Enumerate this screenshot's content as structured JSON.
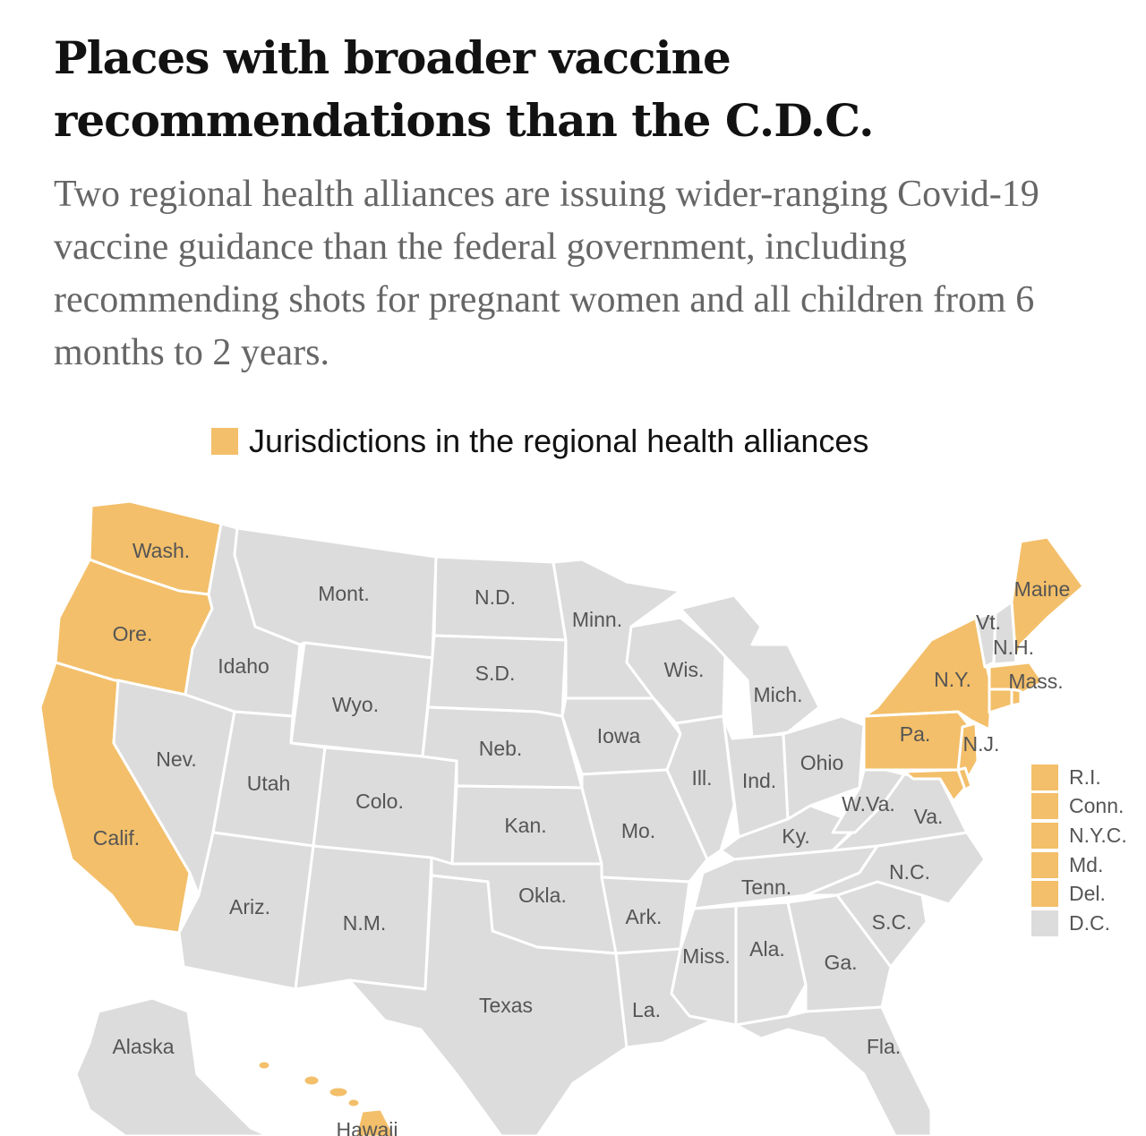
{
  "headline_line1": "Places with broader vaccine",
  "headline_line2": "recommendations than the C.D.C.",
  "dek": "Two regional health alliances are issuing wider-ranging Covid-19 vaccine guidance than the federal government, including recommending shots for pregnant women and all children from 6 months to 2 years.",
  "legend": {
    "label": "Jurisdictions in the regional health alliances",
    "color": "#f3bf6a"
  },
  "colors": {
    "alliance": "#f3bf6a",
    "other": "#dcdcdc",
    "border": "#ffffff",
    "label": "#555555"
  },
  "states": [
    {
      "id": "wa",
      "label": "Wash.",
      "alliance": true
    },
    {
      "id": "or",
      "label": "Ore.",
      "alliance": true
    },
    {
      "id": "ca",
      "label": "Calif.",
      "alliance": true
    },
    {
      "id": "id",
      "label": "Idaho",
      "alliance": false
    },
    {
      "id": "nv",
      "label": "Nev.",
      "alliance": false
    },
    {
      "id": "mt",
      "label": "Mont.",
      "alliance": false
    },
    {
      "id": "wy",
      "label": "Wyo.",
      "alliance": false
    },
    {
      "id": "ut",
      "label": "Utah",
      "alliance": false
    },
    {
      "id": "az",
      "label": "Ariz.",
      "alliance": false
    },
    {
      "id": "co",
      "label": "Colo.",
      "alliance": false
    },
    {
      "id": "nm",
      "label": "N.M.",
      "alliance": false
    },
    {
      "id": "nd",
      "label": "N.D.",
      "alliance": false
    },
    {
      "id": "sd",
      "label": "S.D.",
      "alliance": false
    },
    {
      "id": "ne",
      "label": "Neb.",
      "alliance": false
    },
    {
      "id": "ks",
      "label": "Kan.",
      "alliance": false
    },
    {
      "id": "ok",
      "label": "Okla.",
      "alliance": false
    },
    {
      "id": "tx",
      "label": "Texas",
      "alliance": false
    },
    {
      "id": "mn",
      "label": "Minn.",
      "alliance": false
    },
    {
      "id": "ia",
      "label": "Iowa",
      "alliance": false
    },
    {
      "id": "mo",
      "label": "Mo.",
      "alliance": false
    },
    {
      "id": "ar",
      "label": "Ark.",
      "alliance": false
    },
    {
      "id": "la",
      "label": "La.",
      "alliance": false
    },
    {
      "id": "wi",
      "label": "Wis.",
      "alliance": false
    },
    {
      "id": "il",
      "label": "Ill.",
      "alliance": false
    },
    {
      "id": "mi",
      "label": "Mich.",
      "alliance": false
    },
    {
      "id": "in",
      "label": "Ind.",
      "alliance": false
    },
    {
      "id": "oh",
      "label": "Ohio",
      "alliance": false
    },
    {
      "id": "ky",
      "label": "Ky.",
      "alliance": false
    },
    {
      "id": "tn",
      "label": "Tenn.",
      "alliance": false
    },
    {
      "id": "ms",
      "label": "Miss.",
      "alliance": false
    },
    {
      "id": "al",
      "label": "Ala.",
      "alliance": false
    },
    {
      "id": "ga",
      "label": "Ga.",
      "alliance": false
    },
    {
      "id": "fl",
      "label": "Fla.",
      "alliance": false
    },
    {
      "id": "sc",
      "label": "S.C.",
      "alliance": false
    },
    {
      "id": "nc",
      "label": "N.C.",
      "alliance": false
    },
    {
      "id": "va",
      "label": "Va.",
      "alliance": false
    },
    {
      "id": "wv",
      "label": "W.Va.",
      "alliance": false
    },
    {
      "id": "pa",
      "label": "Pa.",
      "alliance": true
    },
    {
      "id": "ny",
      "label": "N.Y.",
      "alliance": true
    },
    {
      "id": "nj",
      "label": "N.J.",
      "alliance": true
    },
    {
      "id": "vt",
      "label": "Vt.",
      "alliance": false
    },
    {
      "id": "nh",
      "label": "N.H.",
      "alliance": false
    },
    {
      "id": "me",
      "label": "Maine",
      "alliance": true
    },
    {
      "id": "ma",
      "label": "Mass.",
      "alliance": true
    },
    {
      "id": "md",
      "label": "",
      "alliance": true
    },
    {
      "id": "de",
      "label": "",
      "alliance": true
    },
    {
      "id": "ri",
      "label": "",
      "alliance": true
    },
    {
      "id": "ct",
      "label": "",
      "alliance": true
    },
    {
      "id": "ak",
      "label": "Alaska",
      "alliance": false
    },
    {
      "id": "hi",
      "label": "Hawaii",
      "alliance": true
    }
  ],
  "small_jurisdictions": [
    {
      "label": "R.I.",
      "alliance": true
    },
    {
      "label": "Conn.",
      "alliance": true
    },
    {
      "label": "N.Y.C.",
      "alliance": true
    },
    {
      "label": "Md.",
      "alliance": true
    },
    {
      "label": "Del.",
      "alliance": true
    },
    {
      "label": "D.C.",
      "alliance": false
    }
  ]
}
